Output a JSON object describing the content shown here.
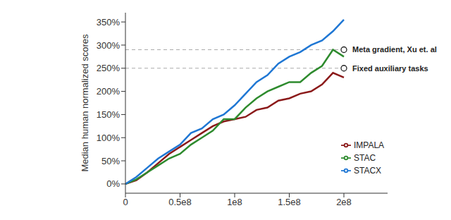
{
  "chart_data": {
    "type": "line",
    "y_label": "Median human normalized scores",
    "x": [
      0,
      10000000,
      20000000,
      30000000,
      40000000,
      50000000,
      60000000,
      70000000,
      80000000,
      90000000,
      100000000,
      110000000,
      120000000,
      130000000,
      140000000,
      150000000,
      160000000,
      170000000,
      180000000,
      190000000,
      200000000
    ],
    "series": [
      {
        "name": "IMPALA",
        "color": "#8b1a1a",
        "values": [
          0,
          8,
          25,
          45,
          65,
          80,
          95,
          110,
          125,
          135,
          140,
          145,
          160,
          165,
          180,
          185,
          195,
          200,
          215,
          240,
          230
        ]
      },
      {
        "name": "STAC",
        "color": "#2e8b2e",
        "values": [
          0,
          10,
          25,
          40,
          55,
          65,
          85,
          100,
          115,
          140,
          140,
          165,
          185,
          200,
          210,
          220,
          220,
          240,
          255,
          290,
          275
        ]
      },
      {
        "name": "STACX",
        "color": "#1f77d4",
        "values": [
          0,
          15,
          35,
          55,
          70,
          85,
          110,
          120,
          140,
          150,
          170,
          195,
          220,
          235,
          260,
          275,
          285,
          300,
          310,
          330,
          355
        ]
      }
    ],
    "reference_lines": [
      {
        "label": "Meta gradient, Xu et. al",
        "y": 290,
        "x": [
          0,
          200000000
        ]
      },
      {
        "label": "Fixed auxiliary tasks",
        "y": 250,
        "x": [
          0,
          200000000
        ]
      }
    ],
    "xlim": [
      0,
      240000000
    ],
    "xticks": [
      0,
      {
        "value": 50000000,
        "label": "0.5e8"
      },
      {
        "value": 100000000,
        "label": "1e8"
      },
      {
        "value": 150000000,
        "label": "1.5e8"
      },
      {
        "value": 200000000,
        "label": "2e8"
      }
    ],
    "ylim": [
      -20,
      370
    ],
    "yticks": [
      {
        "value": 0,
        "label": "0%"
      },
      {
        "value": 50,
        "label": "50%"
      },
      {
        "value": 100,
        "label": "100%"
      },
      {
        "value": 150,
        "label": "150%"
      },
      {
        "value": 200,
        "label": "200%"
      },
      {
        "value": 250,
        "label": "250%"
      },
      {
        "value": 300,
        "label": "300%"
      },
      {
        "value": 350,
        "label": "350%"
      }
    ],
    "grid": false,
    "legend": "lower right"
  }
}
